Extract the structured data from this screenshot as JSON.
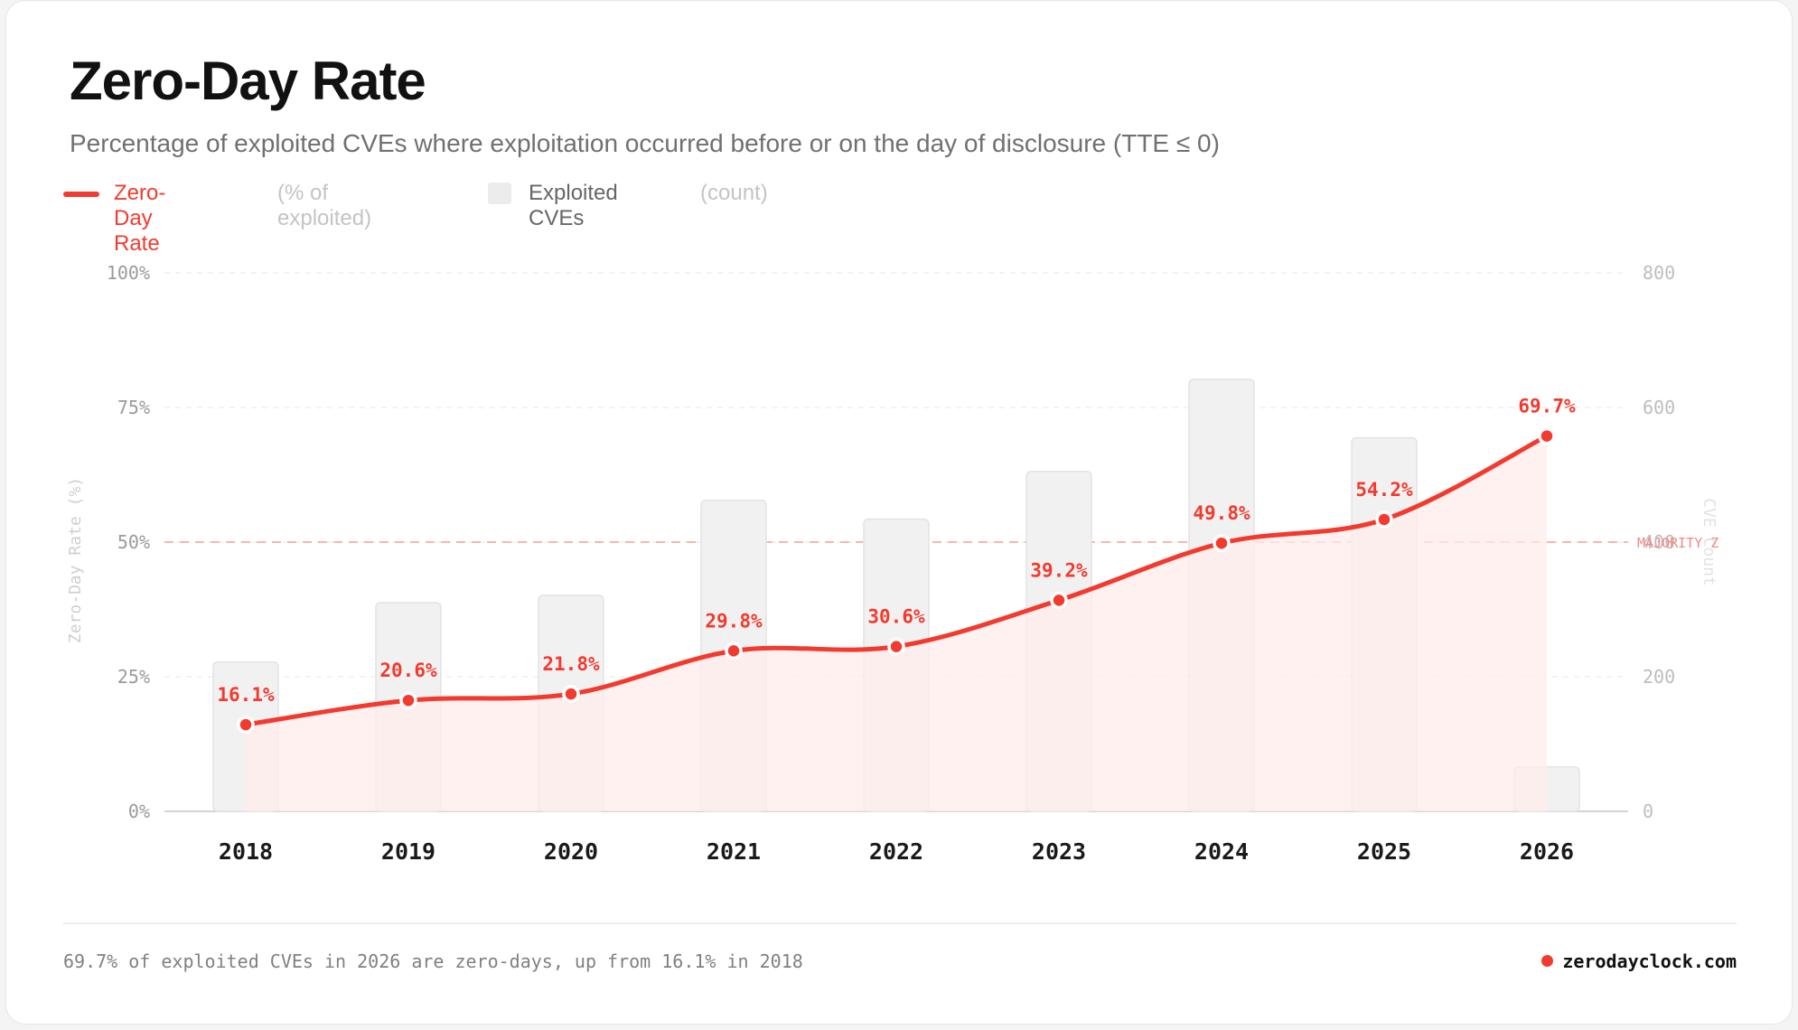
{
  "title": "Zero-Day Rate",
  "subtitle": "Percentage of exploited CVEs where exploitation occurred before or on the day of disclosure (TTE ≤ 0)",
  "legend": {
    "rate_label": "Zero-Day Rate",
    "rate_unit": "(% of exploited)",
    "bar_label": "Exploited CVEs",
    "bar_unit": "(count)"
  },
  "colors": {
    "accent": "#f23a2f",
    "bar": "#f0f0f0",
    "area": "#fdeceb"
  },
  "chart_data": {
    "type": "bar+line",
    "categories": [
      "2018",
      "2019",
      "2020",
      "2021",
      "2022",
      "2023",
      "2024",
      "2025",
      "2026"
    ],
    "series": [
      {
        "name": "Zero-Day Rate",
        "axis": "left",
        "values": [
          16.1,
          20.6,
          21.8,
          29.8,
          30.6,
          39.2,
          49.8,
          54.2,
          69.7
        ],
        "labels": [
          "16.1%",
          "20.6%",
          "21.8%",
          "29.8%",
          "30.6%",
          "39.2%",
          "49.8%",
          "54.2%",
          "69.7%"
        ]
      },
      {
        "name": "Exploited CVEs",
        "axis": "right",
        "values": [
          222,
          310,
          321,
          462,
          434,
          505,
          642,
          555,
          66
        ]
      }
    ],
    "y_left": {
      "label": "Zero-Day Rate (%)",
      "range": [
        0,
        100
      ],
      "ticks": [
        0,
        25,
        50,
        75,
        100
      ],
      "tick_labels": [
        "0%",
        "25%",
        "50%",
        "75%",
        "100%"
      ]
    },
    "y_right": {
      "label": "CVE Count",
      "range": [
        0,
        800
      ],
      "ticks": [
        0,
        200,
        400,
        600,
        800
      ],
      "tick_labels": [
        "0",
        "200",
        "400",
        "600",
        "800"
      ]
    },
    "reference_line": {
      "value": 50,
      "label": "MAJORITY Z"
    },
    "grid": true
  },
  "footer": {
    "summary": "69.7% of exploited CVEs in 2026 are zero-days, up from 16.1% in 2018",
    "brand": "zerodayclock.com"
  }
}
